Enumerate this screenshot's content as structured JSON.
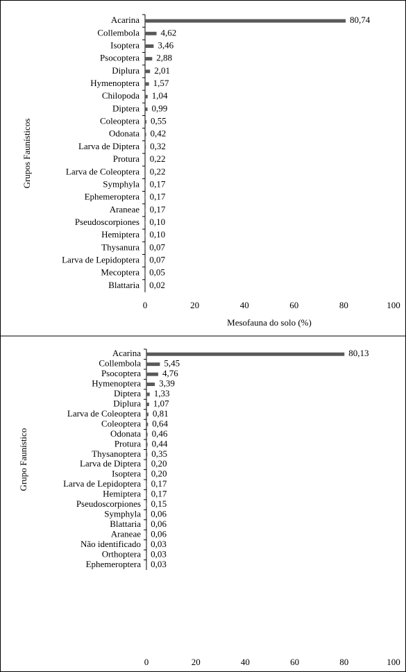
{
  "chart_data": [
    {
      "type": "bar",
      "orientation": "horizontal",
      "y_label": "Grupos Faunísticos",
      "x_label": "Mesofauna do solo (%)",
      "categories": [
        "Acarina",
        "Collembola",
        "Isoptera",
        "Psocoptera",
        "Diplura",
        "Hymenoptera",
        "Chilopoda",
        "Diptera",
        "Coleoptera",
        "Odonata",
        "Larva de Diptera",
        "Protura",
        "Larva de Coleoptera",
        "Symphyla",
        "Ephemeroptera",
        "Araneae",
        "Pseudoscorpiones",
        "Hemiptera",
        "Thysanura",
        "Larva de Lepidoptera",
        "Mecoptera",
        "Blattaria"
      ],
      "values": [
        80.74,
        4.62,
        3.46,
        2.88,
        2.01,
        1.57,
        1.04,
        0.99,
        0.55,
        0.42,
        0.32,
        0.22,
        0.22,
        0.17,
        0.17,
        0.17,
        0.1,
        0.1,
        0.07,
        0.07,
        0.05,
        0.02
      ],
      "value_labels": [
        "80,74",
        "4,62",
        "3,46",
        "2,88",
        "2,01",
        "1,57",
        "1,04",
        "0,99",
        "0,55",
        "0,42",
        "0,32",
        "0,22",
        "0,22",
        "0,17",
        "0,17",
        "0,17",
        "0,10",
        "0,10",
        "0,07",
        "0,07",
        "0,05",
        "0,02"
      ],
      "color": "#595959",
      "xlim": [
        0,
        100
      ],
      "xticks": [
        0,
        20,
        40,
        60,
        80,
        100
      ]
    },
    {
      "type": "bar",
      "orientation": "horizontal",
      "y_label": "Grupo Faunístico",
      "categories": [
        "Acarina",
        "Collembola",
        "Psocoptera",
        "Hymenoptera",
        "Diptera",
        "Diplura",
        "Larva de Coleoptera",
        "Coleoptera",
        "Odonata",
        "Protura",
        "Thysanoptera",
        "Larva de Diptera",
        "Isoptera",
        "Larva de Lepidoptera",
        "Hemiptera",
        "Pseudoscorpiones",
        "Symphyla",
        "Blattaria",
        "Araneae",
        "Não identificado",
        "Orthoptera",
        "Ephemeroptera"
      ],
      "values": [
        80.13,
        5.45,
        4.76,
        3.39,
        1.33,
        1.07,
        0.81,
        0.64,
        0.46,
        0.44,
        0.35,
        0.2,
        0.2,
        0.17,
        0.17,
        0.15,
        0.06,
        0.06,
        0.06,
        0.03,
        0.03,
        0.03
      ],
      "value_labels": [
        "80,13",
        "5,45",
        "4,76",
        "3,39",
        "1,33",
        "1,07",
        "0,81",
        "0,64",
        "0,46",
        "0,44",
        "0,35",
        "0,20",
        "0,20",
        "0,17",
        "0,17",
        "0,15",
        "0,06",
        "0,06",
        "0,06",
        "0,03",
        "0,03",
        "0,03"
      ],
      "color": "#595959",
      "xlim": [
        0,
        100
      ],
      "xticks": [
        0,
        20,
        40,
        60,
        80,
        100
      ]
    }
  ]
}
